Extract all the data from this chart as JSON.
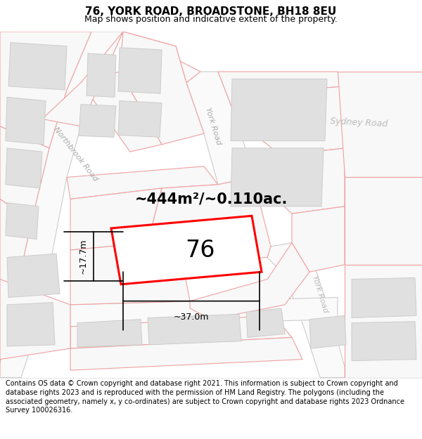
{
  "title": "76, YORK ROAD, BROADSTONE, BH18 8EU",
  "subtitle": "Map shows position and indicative extent of the property.",
  "footer": "Contains OS data © Crown copyright and database right 2021. This information is subject to Crown copyright and database rights 2023 and is reproduced with the permission of HM Land Registry. The polygons (including the associated geometry, namely x, y co-ordinates) are subject to Crown copyright and database rights 2023 Ordnance Survey 100026316.",
  "map_bg": "#f5f5f5",
  "road_fill": "#ffffff",
  "road_stroke": "#f0a0a0",
  "building_fill": "#e0e0e0",
  "building_stroke": "#cccccc",
  "plot_stroke": "#ff0000",
  "plot_fill": "#ffffff",
  "area_text": "~444m²/~0.110ac.",
  "plot_number": "76",
  "dim_width": "~37.0m",
  "dim_height": "~17.7m",
  "northbrook_label": "Northbrook Road",
  "york_road_label_top": "York Road",
  "york_road_label_bot": "York Road",
  "sydney_road_label": "Sydney Road",
  "title_fontsize": 11,
  "subtitle_fontsize": 9,
  "footer_fontsize": 7.0,
  "road_label_color": "#aaaaaa",
  "road_lw": 0.8,
  "plot_lw": 2.2
}
